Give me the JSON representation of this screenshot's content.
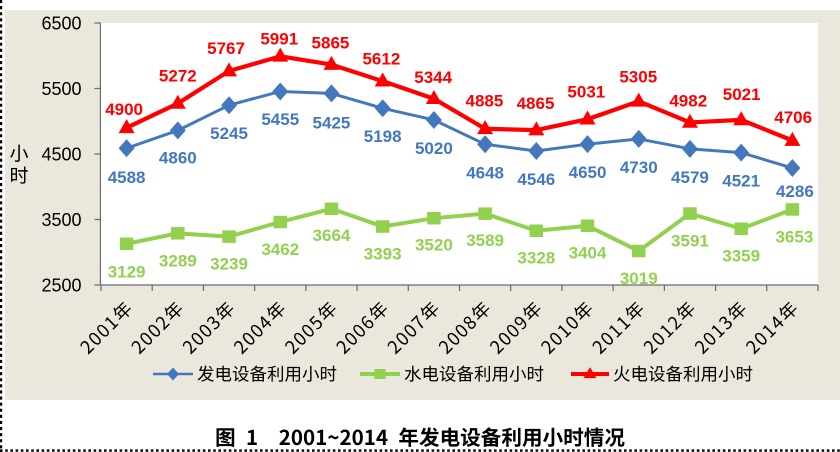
{
  "page": {
    "caption": "图 1  2001~2014 年发电设备利用小时情况"
  },
  "chart_data": {
    "type": "line",
    "title": "图 1  2001~2014 年发电设备利用小时情况",
    "ylabel": "小时",
    "ylim": [
      2500,
      6500
    ],
    "yticks": [
      2500,
      3500,
      4500,
      5500,
      6500
    ],
    "grid": false,
    "legend_position": "bottom",
    "categories": [
      "2001年",
      "2002年",
      "2003年",
      "2004年",
      "2005年",
      "2006年",
      "2007年",
      "2008年",
      "2009年",
      "2010年",
      "2011年",
      "2012年",
      "2013年",
      "2014年"
    ],
    "series": [
      {
        "name": "发电设备利用小时",
        "color": "#4478BE",
        "marker": "diamond",
        "label_position": "below",
        "values": [
          4588,
          4860,
          5245,
          5455,
          5425,
          5198,
          5020,
          4648,
          4546,
          4650,
          4730,
          4579,
          4521,
          4286
        ]
      },
      {
        "name": "水电设备利用小时",
        "color": "#92D050",
        "marker": "square",
        "label_position": "below",
        "values": [
          3129,
          3289,
          3239,
          3462,
          3664,
          3393,
          3520,
          3589,
          3328,
          3404,
          3019,
          3591,
          3359,
          3653
        ]
      },
      {
        "name": "火电设备利用小时",
        "color": "#FF0000",
        "marker": "triangle",
        "label_position": "above",
        "values": [
          4900,
          5272,
          5767,
          5991,
          5865,
          5612,
          5344,
          4885,
          4865,
          5031,
          5305,
          4982,
          5021,
          4706
        ]
      }
    ]
  },
  "colors": {
    "chart_background": "#EAE7DC",
    "plot_background": "#FFFFFF",
    "axis": "#6B6B6B",
    "text": "#000000",
    "page_border_dots": "#000000",
    "series_blue": "#4478BE",
    "series_green": "#92D050",
    "series_red": "#FF0000"
  }
}
